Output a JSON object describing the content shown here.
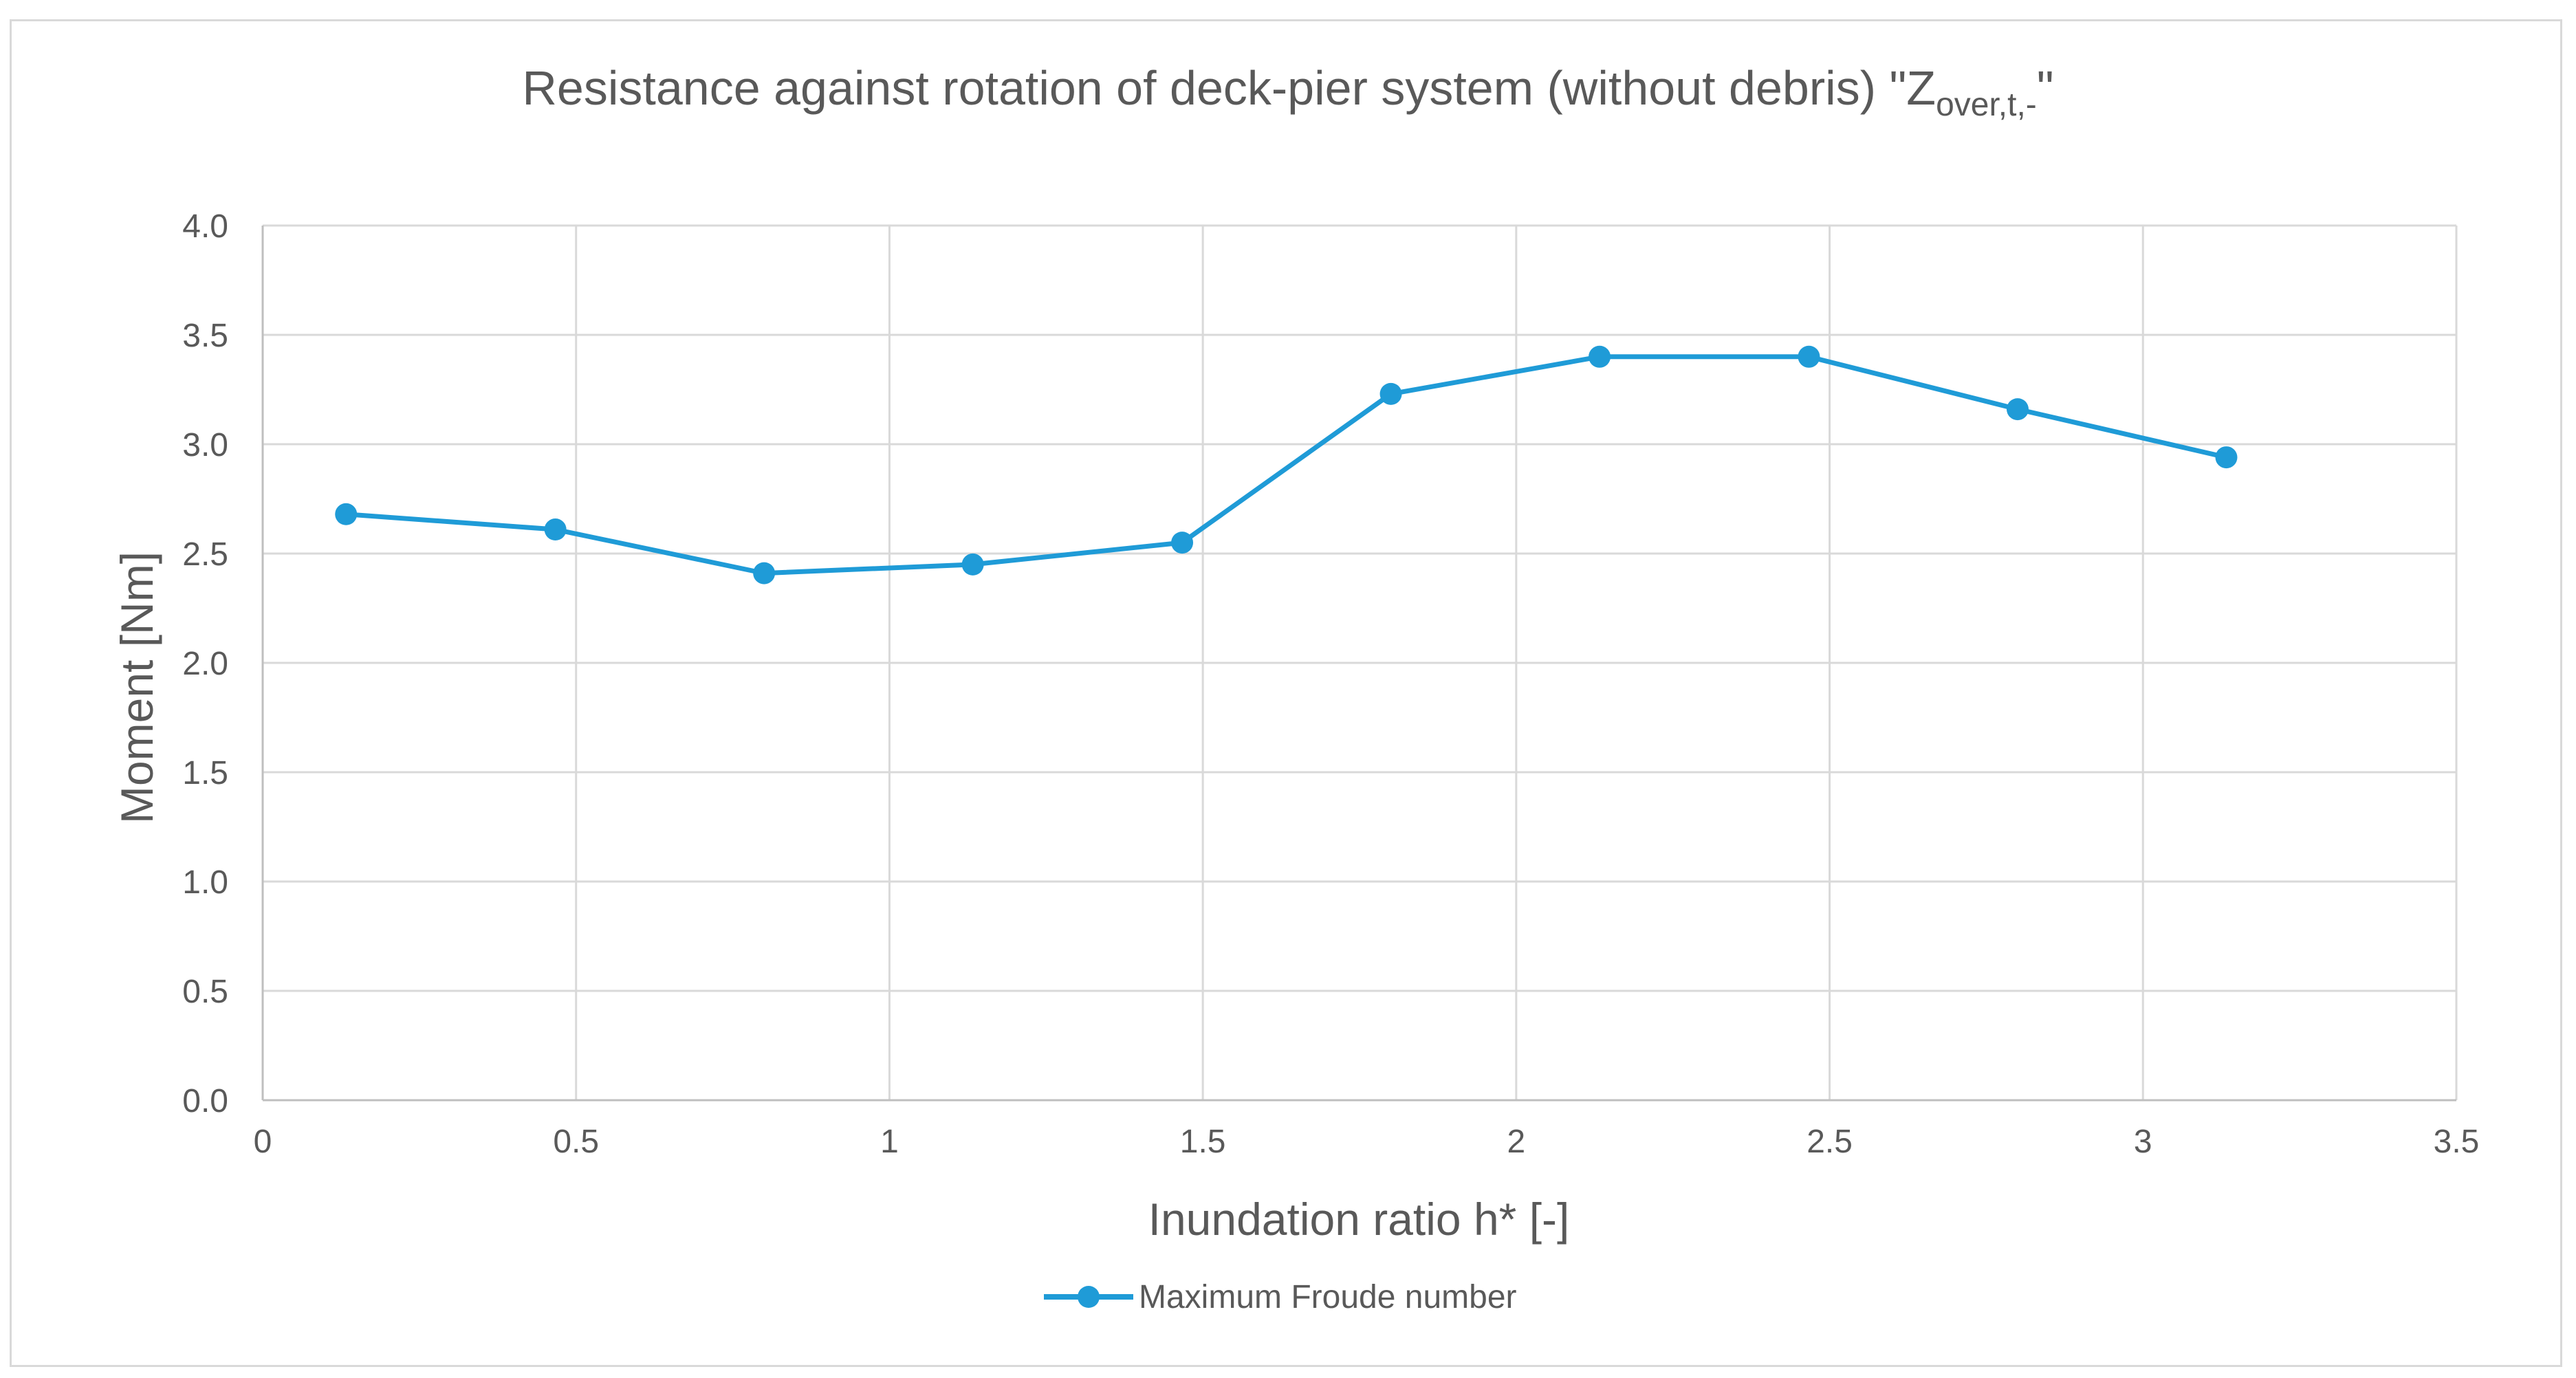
{
  "chart_data": {
    "type": "line",
    "title": "Resistance against rotation of deck-pier system (without debris) \"Z",
    "title_subscript": "over,t,-",
    "title_suffix": "\"",
    "xlabel": "Inundation ratio h* [-]",
    "ylabel": "Moment [Nm]",
    "xlim": [
      0,
      3.5
    ],
    "ylim": [
      0,
      4.0
    ],
    "x_ticks": [
      "0",
      "0.5",
      "1",
      "1.5",
      "2",
      "2.5",
      "3",
      "3.5"
    ],
    "y_ticks": [
      "0.0",
      "0.5",
      "1.0",
      "1.5",
      "2.0",
      "2.5",
      "3.0",
      "3.5",
      "4.0"
    ],
    "grid": true,
    "legend_position": "bottom",
    "series": [
      {
        "name": "Maximum Froude number",
        "color": "#1f9bd7",
        "marker": "circle",
        "x": [
          0.133,
          0.467,
          0.8,
          1.133,
          1.467,
          1.8,
          2.133,
          2.467,
          2.8,
          3.133
        ],
        "y": [
          2.68,
          2.61,
          2.41,
          2.45,
          2.55,
          3.23,
          3.4,
          3.4,
          3.16,
          2.94
        ]
      }
    ]
  }
}
